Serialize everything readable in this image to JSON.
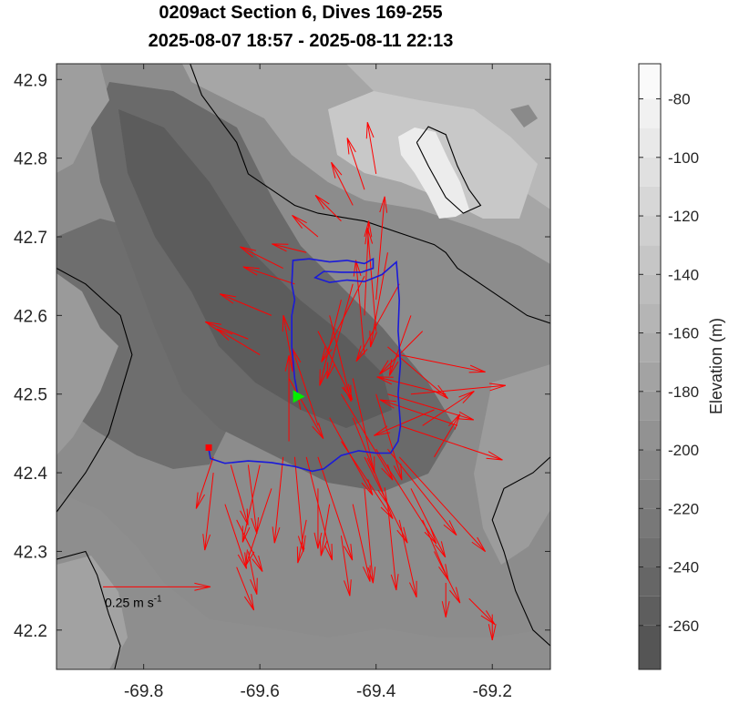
{
  "chart_data": {
    "type": "map",
    "title": "0209act Section 6, Dives 169-255",
    "subtitle": "2025-08-07 18:57 - 2025-08-11 22:13",
    "xlim": [
      -69.95,
      -69.1
    ],
    "ylim": [
      42.15,
      42.92
    ],
    "xticks": [
      -69.8,
      -69.6,
      -69.4,
      -69.2
    ],
    "xtick_labels": [
      "-69.8",
      "-69.6",
      "-69.4",
      "-69.2"
    ],
    "yticks": [
      42.2,
      42.3,
      42.4,
      42.5,
      42.6,
      42.7,
      42.8,
      42.9
    ],
    "ytick_labels": [
      "42.2",
      "42.3",
      "42.4",
      "42.5",
      "42.6",
      "42.7",
      "42.8",
      "42.9"
    ],
    "colorbar": {
      "label": "Elevation (m)",
      "range": [
        -275,
        -68
      ],
      "ticks": [
        -80,
        -100,
        -120,
        -140,
        -160,
        -180,
        -200,
        -220,
        -240,
        -260
      ],
      "tick_labels": [
        "-80",
        "-100",
        "-120",
        "-140",
        "-160",
        "-180",
        "-200",
        "-220",
        "-240",
        "-260"
      ],
      "levels": [
        -260,
        -250,
        -240,
        -230,
        -220,
        -210,
        -200,
        -190,
        -180,
        -170,
        -160,
        -150,
        -140,
        -130,
        -120,
        -110,
        -100,
        -90,
        -80
      ]
    },
    "colors": {
      "track": "#1a1ad9",
      "vectors": "#ff0000",
      "start_marker": "#00ee00",
      "end_marker": "#ff0000",
      "contour_line": "#000000"
    },
    "scale_arrow": {
      "label": "0.25 m s",
      "label_sup": "-1",
      "speed_ms": 0.25,
      "lon": -69.87,
      "lat": 42.255,
      "lon_end": -69.685
    },
    "track": [
      [
        -69.535,
        42.5
      ],
      [
        -69.54,
        42.52
      ],
      [
        -69.545,
        42.56
      ],
      [
        -69.545,
        42.6
      ],
      [
        -69.54,
        42.62
      ],
      [
        -69.545,
        42.64
      ],
      [
        -69.543,
        42.67
      ],
      [
        -69.515,
        42.672
      ],
      [
        -69.48,
        42.668
      ],
      [
        -69.45,
        42.67
      ],
      [
        -69.42,
        42.666
      ],
      [
        -69.405,
        42.672
      ],
      [
        -69.405,
        42.66
      ],
      [
        -69.425,
        42.655
      ],
      [
        -69.46,
        42.655
      ],
      [
        -69.49,
        42.656
      ],
      [
        -69.505,
        42.648
      ],
      [
        -69.48,
        42.642
      ],
      [
        -69.45,
        42.645
      ],
      [
        -69.42,
        42.643
      ],
      [
        -69.39,
        42.652
      ],
      [
        -69.365,
        42.668
      ],
      [
        -69.36,
        42.62
      ],
      [
        -69.362,
        42.58
      ],
      [
        -69.358,
        42.54
      ],
      [
        -69.362,
        42.5
      ],
      [
        -69.358,
        42.46
      ],
      [
        -69.362,
        42.44
      ],
      [
        -69.375,
        42.425
      ],
      [
        -69.4,
        42.425
      ],
      [
        -69.43,
        42.428
      ],
      [
        -69.46,
        42.422
      ],
      [
        -69.49,
        42.405
      ],
      [
        -69.51,
        42.402
      ],
      [
        -69.54,
        42.408
      ],
      [
        -69.58,
        42.413
      ],
      [
        -69.62,
        42.415
      ],
      [
        -69.66,
        42.412
      ],
      [
        -69.685,
        42.418
      ],
      [
        -69.688,
        42.43
      ]
    ],
    "start": {
      "lon": -69.535,
      "lat": 42.497
    },
    "end": {
      "lon": -69.688,
      "lat": 42.432
    },
    "vectors": [
      [
        -69.5,
        42.46,
        -0.06,
        0.18
      ],
      [
        -69.48,
        42.47,
        0.1,
        -0.18
      ],
      [
        -69.46,
        42.5,
        0.12,
        -0.2
      ],
      [
        -69.44,
        42.52,
        0.05,
        -0.22
      ],
      [
        -69.42,
        42.55,
        -0.02,
        0.22
      ],
      [
        -69.42,
        42.6,
        0.01,
        0.22
      ],
      [
        -69.4,
        42.62,
        0.02,
        0.24
      ],
      [
        -69.4,
        42.58,
        -0.02,
        0.24
      ],
      [
        -69.38,
        42.56,
        0.14,
        -0.12
      ],
      [
        -69.38,
        42.5,
        0.2,
        -0.06
      ],
      [
        -69.36,
        42.46,
        0.24,
        -0.08
      ],
      [
        -69.34,
        42.5,
        0.22,
        0.02
      ],
      [
        -69.36,
        42.55,
        0.2,
        -0.04
      ],
      [
        -69.4,
        42.5,
        0.06,
        -0.2
      ],
      [
        -69.44,
        42.47,
        0.08,
        -0.2
      ],
      [
        -69.46,
        42.44,
        0.12,
        -0.18
      ],
      [
        -69.42,
        42.42,
        0.1,
        -0.2
      ],
      [
        -69.4,
        42.43,
        0.14,
        -0.22
      ],
      [
        -69.38,
        42.43,
        0.16,
        -0.2
      ],
      [
        -69.36,
        42.42,
        0.2,
        -0.22
      ],
      [
        -69.5,
        42.42,
        0.08,
        -0.24
      ],
      [
        -69.52,
        42.42,
        0.06,
        -0.24
      ],
      [
        -69.54,
        42.42,
        0.02,
        -0.22
      ],
      [
        -69.56,
        42.42,
        -0.02,
        -0.2
      ],
      [
        -69.6,
        42.41,
        -0.04,
        -0.18
      ],
      [
        -69.62,
        42.41,
        0.02,
        -0.16
      ],
      [
        -69.65,
        42.41,
        0.04,
        -0.14
      ],
      [
        -69.68,
        42.42,
        -0.04,
        -0.12
      ],
      [
        -69.68,
        42.4,
        -0.02,
        -0.18
      ],
      [
        -69.66,
        42.36,
        0.05,
        -0.15
      ],
      [
        -69.64,
        42.34,
        0.06,
        -0.12
      ],
      [
        -69.62,
        42.3,
        0.02,
        -0.1
      ],
      [
        -69.64,
        42.28,
        0.04,
        -0.1
      ],
      [
        -69.55,
        42.44,
        0.0,
        0.2
      ],
      [
        -69.53,
        42.48,
        -0.04,
        0.22
      ],
      [
        -69.55,
        42.52,
        0.08,
        -0.14
      ],
      [
        -69.6,
        42.55,
        -0.1,
        0.06
      ],
      [
        -69.62,
        42.57,
        -0.1,
        0.04
      ],
      [
        -69.58,
        42.6,
        -0.12,
        0.05
      ],
      [
        -69.54,
        42.64,
        -0.12,
        0.04
      ],
      [
        -69.56,
        42.66,
        -0.1,
        0.05
      ],
      [
        -69.52,
        42.68,
        -0.08,
        0.02
      ],
      [
        -69.5,
        42.7,
        -0.06,
        0.05
      ],
      [
        -69.46,
        42.72,
        -0.06,
        0.06
      ],
      [
        -69.44,
        42.74,
        -0.05,
        0.1
      ],
      [
        -69.42,
        42.76,
        -0.04,
        0.12
      ],
      [
        -69.4,
        42.78,
        -0.02,
        0.12
      ],
      [
        -69.42,
        42.65,
        -0.1,
        -0.2
      ],
      [
        -69.44,
        42.64,
        -0.06,
        -0.22
      ],
      [
        -69.46,
        42.62,
        -0.05,
        -0.2
      ],
      [
        -69.48,
        42.6,
        0.05,
        -0.2
      ],
      [
        -69.5,
        42.58,
        0.08,
        -0.16
      ],
      [
        -69.36,
        42.64,
        -0.1,
        -0.18
      ],
      [
        -69.34,
        42.6,
        -0.05,
        -0.14
      ],
      [
        -69.32,
        42.58,
        -0.1,
        -0.1
      ],
      [
        -69.38,
        42.68,
        -0.04,
        -0.22
      ],
      [
        -69.3,
        42.48,
        -0.14,
        -0.06
      ],
      [
        -69.28,
        42.5,
        -0.16,
        0.04
      ],
      [
        -69.32,
        42.46,
        0.12,
        0.08
      ],
      [
        -69.26,
        42.46,
        -0.18,
        0.06
      ],
      [
        -69.3,
        42.42,
        0.06,
        0.1
      ],
      [
        -69.34,
        42.38,
        0.08,
        -0.16
      ],
      [
        -69.32,
        42.34,
        0.06,
        -0.14
      ],
      [
        -69.3,
        42.3,
        0.06,
        -0.12
      ],
      [
        -69.36,
        42.34,
        0.04,
        -0.18
      ],
      [
        -69.38,
        42.36,
        0.02,
        -0.2
      ],
      [
        -69.42,
        42.38,
        0.02,
        -0.22
      ],
      [
        -69.44,
        42.36,
        0.04,
        -0.18
      ],
      [
        -69.46,
        42.32,
        0.02,
        -0.14
      ],
      [
        -69.48,
        42.36,
        -0.02,
        -0.12
      ],
      [
        -69.5,
        42.38,
        0.0,
        -0.14
      ],
      [
        -69.58,
        42.38,
        -0.06,
        -0.18
      ],
      [
        -69.52,
        42.34,
        -0.02,
        -0.1
      ],
      [
        -69.2,
        42.22,
        0.0,
        -0.06
      ],
      [
        -69.24,
        42.24,
        0.06,
        -0.06
      ],
      [
        -69.28,
        42.26,
        0.0,
        -0.08
      ]
    ],
    "contours": [
      [
        [
          -69.95,
          42.35
        ],
        [
          -69.9,
          42.4
        ],
        [
          -69.86,
          42.45
        ],
        [
          -69.84,
          42.5
        ],
        [
          -69.82,
          42.55
        ],
        [
          -69.84,
          42.6
        ],
        [
          -69.9,
          42.64
        ],
        [
          -69.95,
          42.66
        ]
      ],
      [
        [
          -69.95,
          42.29
        ],
        [
          -69.9,
          42.3
        ],
        [
          -69.88,
          42.27
        ],
        [
          -69.86,
          42.22
        ],
        [
          -69.84,
          42.18
        ],
        [
          -69.85,
          42.15
        ]
      ],
      [
        [
          -69.72,
          42.92
        ],
        [
          -69.7,
          42.88
        ],
        [
          -69.67,
          42.85
        ],
        [
          -69.64,
          42.82
        ],
        [
          -69.62,
          42.78
        ],
        [
          -69.58,
          42.76
        ],
        [
          -69.54,
          42.74
        ],
        [
          -69.5,
          42.73
        ],
        [
          -69.46,
          42.725
        ],
        [
          -69.42,
          42.72
        ],
        [
          -69.38,
          42.71
        ],
        [
          -69.34,
          42.7
        ],
        [
          -69.3,
          42.69
        ],
        [
          -69.28,
          42.68
        ],
        [
          -69.26,
          42.66
        ],
        [
          -69.22,
          42.64
        ],
        [
          -69.18,
          42.62
        ],
        [
          -69.14,
          42.6
        ],
        [
          -69.1,
          42.59
        ]
      ],
      [
        [
          -69.33,
          42.82
        ],
        [
          -69.31,
          42.84
        ],
        [
          -69.28,
          42.83
        ],
        [
          -69.26,
          42.79
        ],
        [
          -69.24,
          42.76
        ],
        [
          -69.22,
          42.74
        ],
        [
          -69.25,
          42.73
        ],
        [
          -69.28,
          42.75
        ],
        [
          -69.31,
          42.79
        ],
        [
          -69.33,
          42.82
        ]
      ],
      [
        [
          -69.1,
          42.42
        ],
        [
          -69.13,
          42.4
        ],
        [
          -69.18,
          42.38
        ],
        [
          -69.2,
          42.34
        ],
        [
          -69.18,
          42.3
        ],
        [
          -69.16,
          42.25
        ],
        [
          -69.13,
          42.2
        ],
        [
          -69.1,
          42.18
        ]
      ]
    ]
  }
}
